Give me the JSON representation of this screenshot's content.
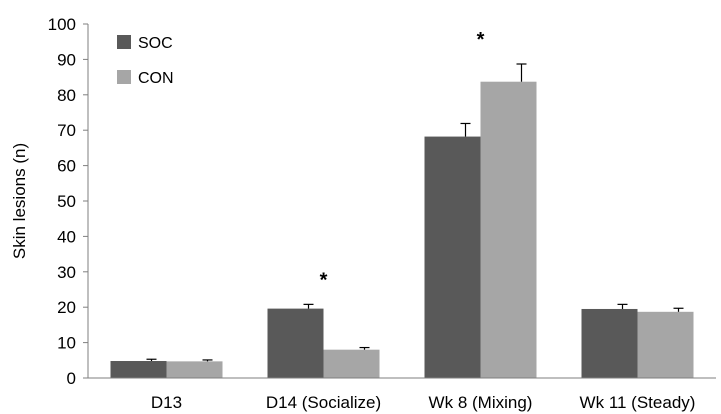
{
  "chart_data": {
    "type": "bar",
    "categories": [
      "D13",
      "D14 (Socialize)",
      "Wk 8 (Mixing)",
      "Wk 11 (Steady)"
    ],
    "series": [
      {
        "name": "SOC",
        "color": "#595959",
        "values": [
          4.8,
          19.6,
          68.2,
          19.5
        ],
        "errors": [
          0.5,
          1.2,
          3.7,
          1.3
        ]
      },
      {
        "name": "CON",
        "color": "#a6a6a6",
        "values": [
          4.7,
          8.0,
          83.7,
          18.7
        ],
        "errors": [
          0.4,
          0.6,
          5.0,
          1.0
        ]
      }
    ],
    "significance": [
      "",
      "*",
      "*",
      ""
    ],
    "title": "",
    "xlabel": "",
    "ylabel": "Skin lesions (n)",
    "ylim": [
      0,
      100
    ],
    "yticks": [
      0,
      10,
      20,
      30,
      40,
      50,
      60,
      70,
      80,
      90,
      100
    ],
    "grid": false,
    "legend": "top-left"
  }
}
